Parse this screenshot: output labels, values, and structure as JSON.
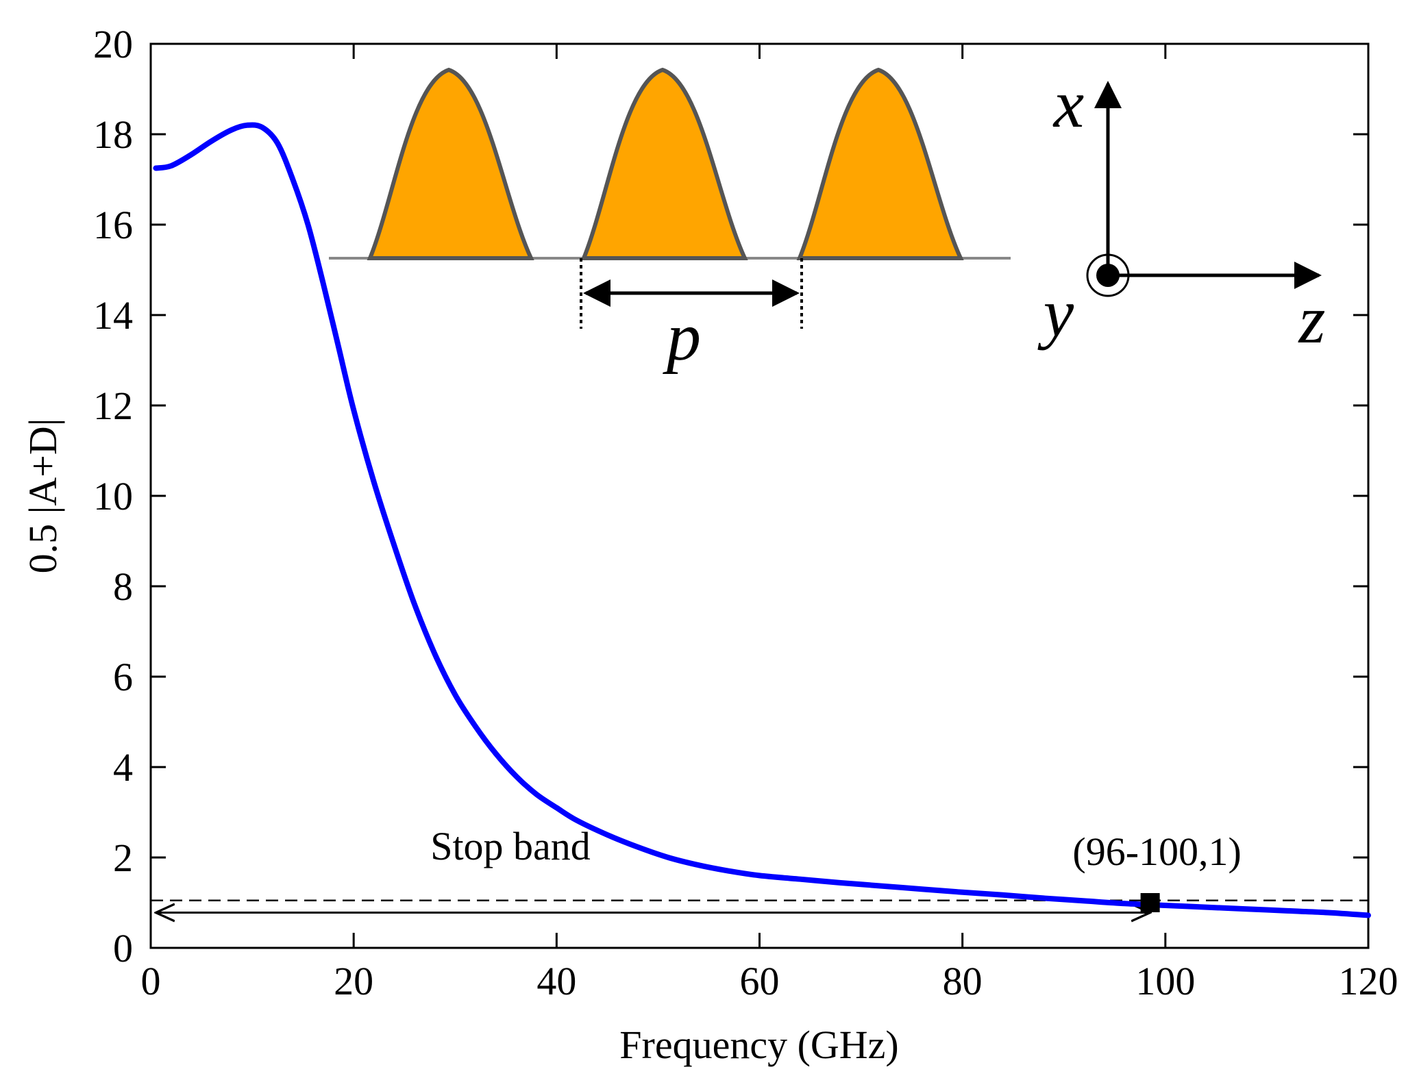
{
  "chart_data": {
    "type": "line",
    "xlabel": "Frequency (GHz)",
    "ylabel": "0.5 |A+D|",
    "xlim": [
      0,
      120
    ],
    "ylim": [
      0,
      20
    ],
    "xticks": [
      0,
      20,
      40,
      60,
      80,
      100,
      120
    ],
    "yticks": [
      0,
      2,
      4,
      6,
      8,
      10,
      12,
      14,
      16,
      18,
      20
    ],
    "grid": false,
    "series": [
      {
        "name": "0.5 |A+D|",
        "color": "#0000ff",
        "x": [
          0.5,
          2,
          4,
          6,
          8,
          9.5,
          11,
          12.5,
          14,
          15.5,
          17,
          18.5,
          20,
          22,
          24,
          26,
          28,
          30,
          32,
          34,
          36,
          38,
          40,
          42,
          45,
          48,
          51,
          54,
          57,
          60,
          64,
          68,
          72,
          76,
          80,
          84,
          88,
          92,
          96,
          100,
          104,
          108,
          112,
          116,
          120
        ],
        "y": [
          17.25,
          17.3,
          17.55,
          17.85,
          18.1,
          18.2,
          18.15,
          17.8,
          17.0,
          16.0,
          14.7,
          13.3,
          11.9,
          10.3,
          8.9,
          7.6,
          6.5,
          5.6,
          4.9,
          4.3,
          3.8,
          3.4,
          3.1,
          2.82,
          2.5,
          2.23,
          2.0,
          1.83,
          1.7,
          1.6,
          1.52,
          1.44,
          1.37,
          1.3,
          1.23,
          1.17,
          1.1,
          1.04,
          0.98,
          0.94,
          0.9,
          0.86,
          0.82,
          0.78,
          0.72
        ]
      }
    ],
    "reference_line": {
      "y": 1.05,
      "style": "dashed"
    },
    "stop_band": {
      "label": "Stop band",
      "x_start": 0.5,
      "x_end": 98.5,
      "y": 0.78
    },
    "marker": {
      "x": 98.5,
      "y": 1.0,
      "label": "(96-100,1)"
    }
  },
  "inset": {
    "profile_color": "#ffa500",
    "profile_outline": "#555555",
    "period_label": "p",
    "axis_x_label": "x",
    "axis_y_label": "y",
    "axis_z_label": "z"
  }
}
